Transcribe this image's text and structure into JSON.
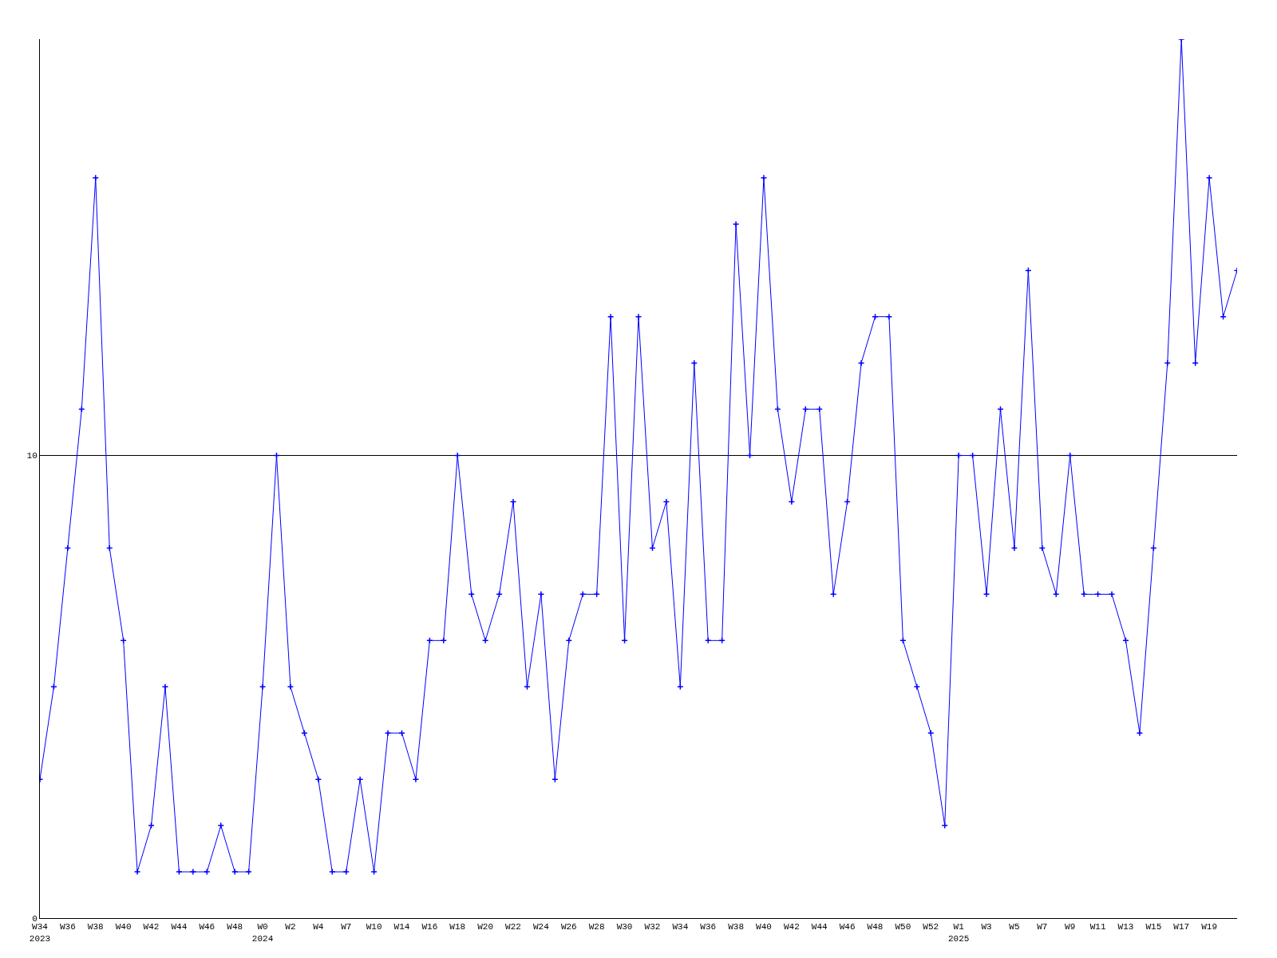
{
  "chart_data": {
    "type": "line",
    "categories": [
      "W34\n2023",
      null,
      "W36",
      null,
      "W38",
      null,
      "W40",
      null,
      "W42",
      null,
      "W44",
      null,
      "W46",
      null,
      "W48",
      null,
      "W0\n2024",
      null,
      "W2",
      null,
      "W4",
      null,
      "W7",
      null,
      "W10",
      null,
      "W14",
      null,
      "W16",
      null,
      "W18",
      null,
      "W20",
      null,
      "W22",
      null,
      "W24",
      null,
      "W26",
      null,
      "W28",
      null,
      "W30",
      null,
      "W32",
      null,
      "W34",
      null,
      "W36",
      null,
      "W38",
      null,
      "W40",
      null,
      "W42",
      null,
      "W44",
      null,
      "W46",
      null,
      "W48",
      null,
      "W50",
      null,
      "W52",
      null,
      "W1\n2025",
      null,
      "W3",
      null,
      "W5",
      null,
      "W7",
      null,
      "W9",
      null,
      "W11",
      null,
      "W13",
      null,
      "W15",
      null,
      "W17",
      null,
      "W19",
      null,
      null
    ],
    "series": [
      {
        "color": "#0000ff",
        "values": [
          3,
          5,
          8,
          11,
          16,
          8,
          6,
          1,
          2,
          5,
          1,
          1,
          1,
          2,
          1,
          1,
          5,
          10,
          5,
          4,
          3,
          1,
          1,
          3,
          1,
          4,
          4,
          3,
          6,
          6,
          10,
          7,
          6,
          7,
          9,
          5,
          7,
          3,
          6,
          7,
          7,
          13,
          6,
          13,
          8,
          9,
          5,
          12,
          6,
          6,
          15,
          10,
          16,
          11,
          9,
          11,
          11,
          7,
          9,
          12,
          13,
          13,
          6,
          5,
          4,
          2,
          10,
          10,
          7,
          11,
          8,
          14,
          8,
          7,
          10,
          7,
          7,
          7,
          6,
          4,
          8,
          12,
          19,
          12,
          16,
          13,
          14
        ]
      }
    ],
    "ylim": [
      0,
      19
    ],
    "yticks": [
      0,
      10
    ],
    "grid": "y",
    "legend": false,
    "marker": "cross",
    "line_style": "solid"
  }
}
